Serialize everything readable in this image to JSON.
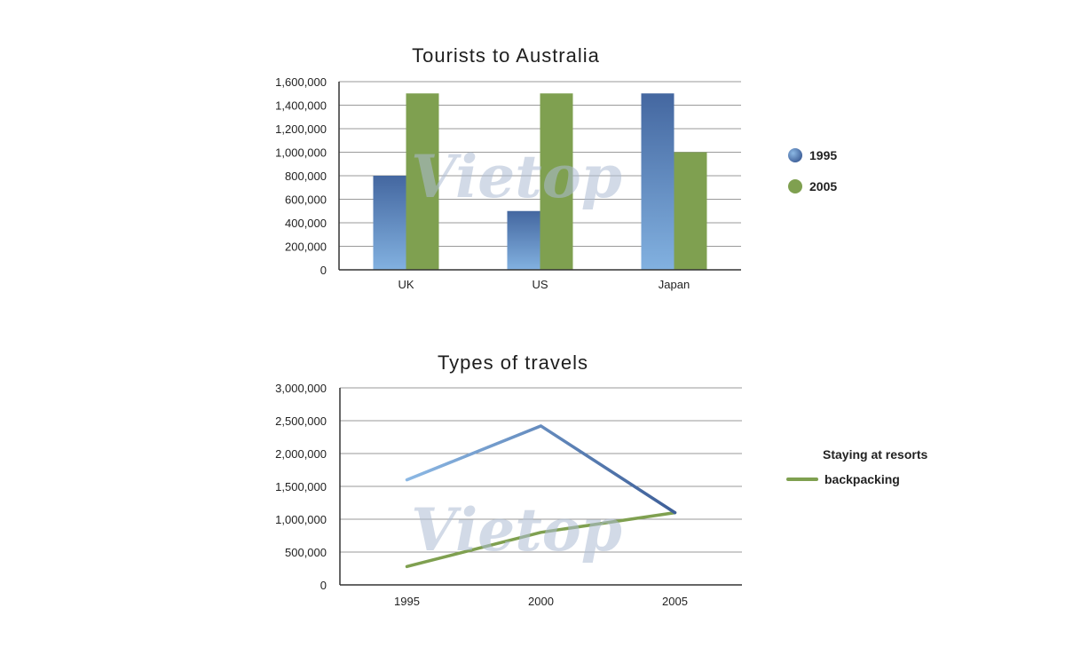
{
  "watermark": "Vietop",
  "chart_data": [
    {
      "type": "bar",
      "title": "Tourists to Australia",
      "xlabel": "",
      "ylabel": "",
      "categories": [
        "UK",
        "US",
        "Japan"
      ],
      "series": [
        {
          "name": "1995",
          "values": [
            800000,
            500000,
            1500000
          ]
        },
        {
          "name": "2005",
          "values": [
            1500000,
            1500000,
            1000000
          ]
        }
      ],
      "ylim": [
        0,
        1600000
      ],
      "yticks": [
        0,
        200000,
        400000,
        600000,
        800000,
        1000000,
        1200000,
        1400000,
        1600000
      ],
      "ytick_labels": [
        "0",
        "200,000",
        "400,000",
        "600,000",
        "800,000",
        "1,000,000",
        "1,200,000",
        "1,400,000",
        "1,600,000"
      ],
      "grid": true,
      "legend": "right",
      "colors": {
        "1995": "#4a6fa5",
        "2005": "#7fa050"
      }
    },
    {
      "type": "line",
      "title": "Types of travels",
      "xlabel": "",
      "ylabel": "",
      "x": [
        "1995",
        "2000",
        "2005"
      ],
      "series": [
        {
          "name": "Staying at resorts",
          "values": [
            1600000,
            2420000,
            1100000
          ]
        },
        {
          "name": "backpacking",
          "values": [
            280000,
            800000,
            1100000
          ]
        }
      ],
      "ylim": [
        0,
        3000000
      ],
      "yticks": [
        0,
        500000,
        1000000,
        1500000,
        2000000,
        2500000,
        3000000
      ],
      "ytick_labels": [
        "0",
        "500,000",
        "1,000,000",
        "1,500,000",
        "2,000,000",
        "2,500,000",
        "3,000,000"
      ],
      "grid": true,
      "legend": "right",
      "colors": {
        "Staying at resorts": "#5b86b8",
        "backpacking": "#7fa050"
      }
    }
  ]
}
